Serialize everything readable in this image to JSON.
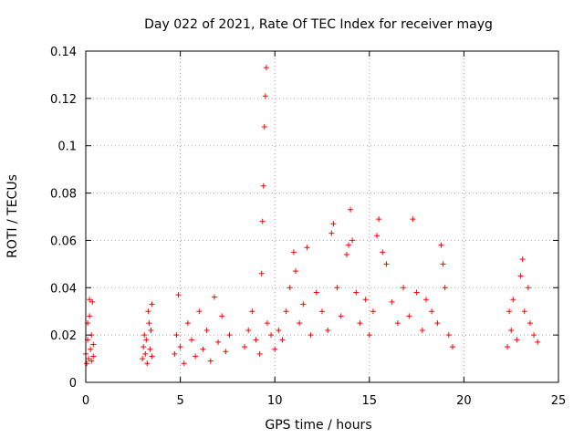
{
  "chart_data": {
    "type": "scatter",
    "title": "Day 022 of 2021, Rate Of TEC Index for receiver mayg",
    "xlabel": "GPS time / hours",
    "ylabel": "ROTI / TECUs",
    "xlim": [
      0,
      25
    ],
    "ylim": [
      0,
      0.14
    ],
    "xticks": [
      0,
      5,
      10,
      15,
      20,
      25
    ],
    "yticks": [
      0,
      0.02,
      0.04,
      0.06,
      0.08,
      0.1,
      0.12,
      0.14
    ],
    "xtick_labels": [
      "0",
      "5",
      "10",
      "15",
      "20",
      "25"
    ],
    "ytick_labels": [
      "0",
      "0.02",
      "0.04",
      "0.06",
      "0.08",
      "0.1",
      "0.12",
      "0.14"
    ],
    "grid": true,
    "marker": "+",
    "color": "#ff0000",
    "series": [
      {
        "points": [
          [
            0.0,
            0.012
          ],
          [
            0.05,
            0.008
          ],
          [
            0.1,
            0.018
          ],
          [
            0.1,
            0.025
          ],
          [
            0.15,
            0.01
          ],
          [
            0.2,
            0.035
          ],
          [
            0.2,
            0.028
          ],
          [
            0.25,
            0.014
          ],
          [
            0.3,
            0.009
          ],
          [
            0.3,
            0.02
          ],
          [
            0.35,
            0.034
          ],
          [
            0.4,
            0.011
          ],
          [
            0.4,
            0.016
          ],
          [
            3.0,
            0.01
          ],
          [
            3.05,
            0.015
          ],
          [
            3.1,
            0.02
          ],
          [
            3.15,
            0.012
          ],
          [
            3.2,
            0.018
          ],
          [
            3.25,
            0.008
          ],
          [
            3.3,
            0.03
          ],
          [
            3.35,
            0.025
          ],
          [
            3.4,
            0.014
          ],
          [
            3.45,
            0.022
          ],
          [
            3.5,
            0.011
          ],
          [
            3.5,
            0.033
          ],
          [
            4.7,
            0.012
          ],
          [
            4.8,
            0.02
          ],
          [
            4.9,
            0.037
          ],
          [
            5.0,
            0.015
          ],
          [
            5.2,
            0.008
          ],
          [
            5.4,
            0.025
          ],
          [
            5.6,
            0.018
          ],
          [
            5.8,
            0.011
          ],
          [
            6.0,
            0.03
          ],
          [
            6.2,
            0.014
          ],
          [
            6.4,
            0.022
          ],
          [
            6.6,
            0.009
          ],
          [
            6.8,
            0.036
          ],
          [
            7.0,
            0.017
          ],
          [
            7.2,
            0.028
          ],
          [
            7.4,
            0.013
          ],
          [
            7.6,
            0.02
          ],
          [
            8.4,
            0.015
          ],
          [
            8.6,
            0.022
          ],
          [
            8.8,
            0.03
          ],
          [
            9.0,
            0.018
          ],
          [
            9.2,
            0.012
          ],
          [
            9.3,
            0.046
          ],
          [
            9.35,
            0.068
          ],
          [
            9.4,
            0.083
          ],
          [
            9.45,
            0.108
          ],
          [
            9.5,
            0.121
          ],
          [
            9.55,
            0.133
          ],
          [
            9.6,
            0.025
          ],
          [
            9.8,
            0.02
          ],
          [
            10.0,
            0.014
          ],
          [
            10.2,
            0.022
          ],
          [
            10.4,
            0.018
          ],
          [
            10.6,
            0.03
          ],
          [
            10.8,
            0.04
          ],
          [
            11.0,
            0.055
          ],
          [
            11.1,
            0.047
          ],
          [
            11.3,
            0.025
          ],
          [
            11.5,
            0.033
          ],
          [
            11.7,
            0.057
          ],
          [
            11.9,
            0.02
          ],
          [
            12.2,
            0.038
          ],
          [
            12.5,
            0.03
          ],
          [
            12.8,
            0.022
          ],
          [
            13.0,
            0.063
          ],
          [
            13.1,
            0.067
          ],
          [
            13.3,
            0.04
          ],
          [
            13.5,
            0.028
          ],
          [
            13.8,
            0.054
          ],
          [
            13.9,
            0.058
          ],
          [
            14.0,
            0.073
          ],
          [
            14.1,
            0.06
          ],
          [
            14.3,
            0.038
          ],
          [
            14.5,
            0.025
          ],
          [
            14.8,
            0.035
          ],
          [
            15.0,
            0.02
          ],
          [
            15.2,
            0.03
          ],
          [
            15.4,
            0.062
          ],
          [
            15.5,
            0.069
          ],
          [
            15.7,
            0.055
          ],
          [
            15.9,
            0.05
          ],
          [
            16.2,
            0.034
          ],
          [
            16.5,
            0.025
          ],
          [
            16.8,
            0.04
          ],
          [
            17.1,
            0.028
          ],
          [
            17.3,
            0.069
          ],
          [
            17.5,
            0.038
          ],
          [
            17.8,
            0.022
          ],
          [
            18.0,
            0.035
          ],
          [
            18.3,
            0.03
          ],
          [
            18.6,
            0.025
          ],
          [
            18.8,
            0.058
          ],
          [
            18.9,
            0.05
          ],
          [
            19.0,
            0.04
          ],
          [
            19.2,
            0.02
          ],
          [
            19.4,
            0.015
          ],
          [
            22.3,
            0.015
          ],
          [
            22.4,
            0.03
          ],
          [
            22.5,
            0.022
          ],
          [
            22.6,
            0.035
          ],
          [
            22.8,
            0.018
          ],
          [
            23.0,
            0.045
          ],
          [
            23.1,
            0.052
          ],
          [
            23.2,
            0.03
          ],
          [
            23.4,
            0.04
          ],
          [
            23.5,
            0.025
          ],
          [
            23.7,
            0.02
          ],
          [
            23.9,
            0.017
          ]
        ]
      }
    ]
  }
}
